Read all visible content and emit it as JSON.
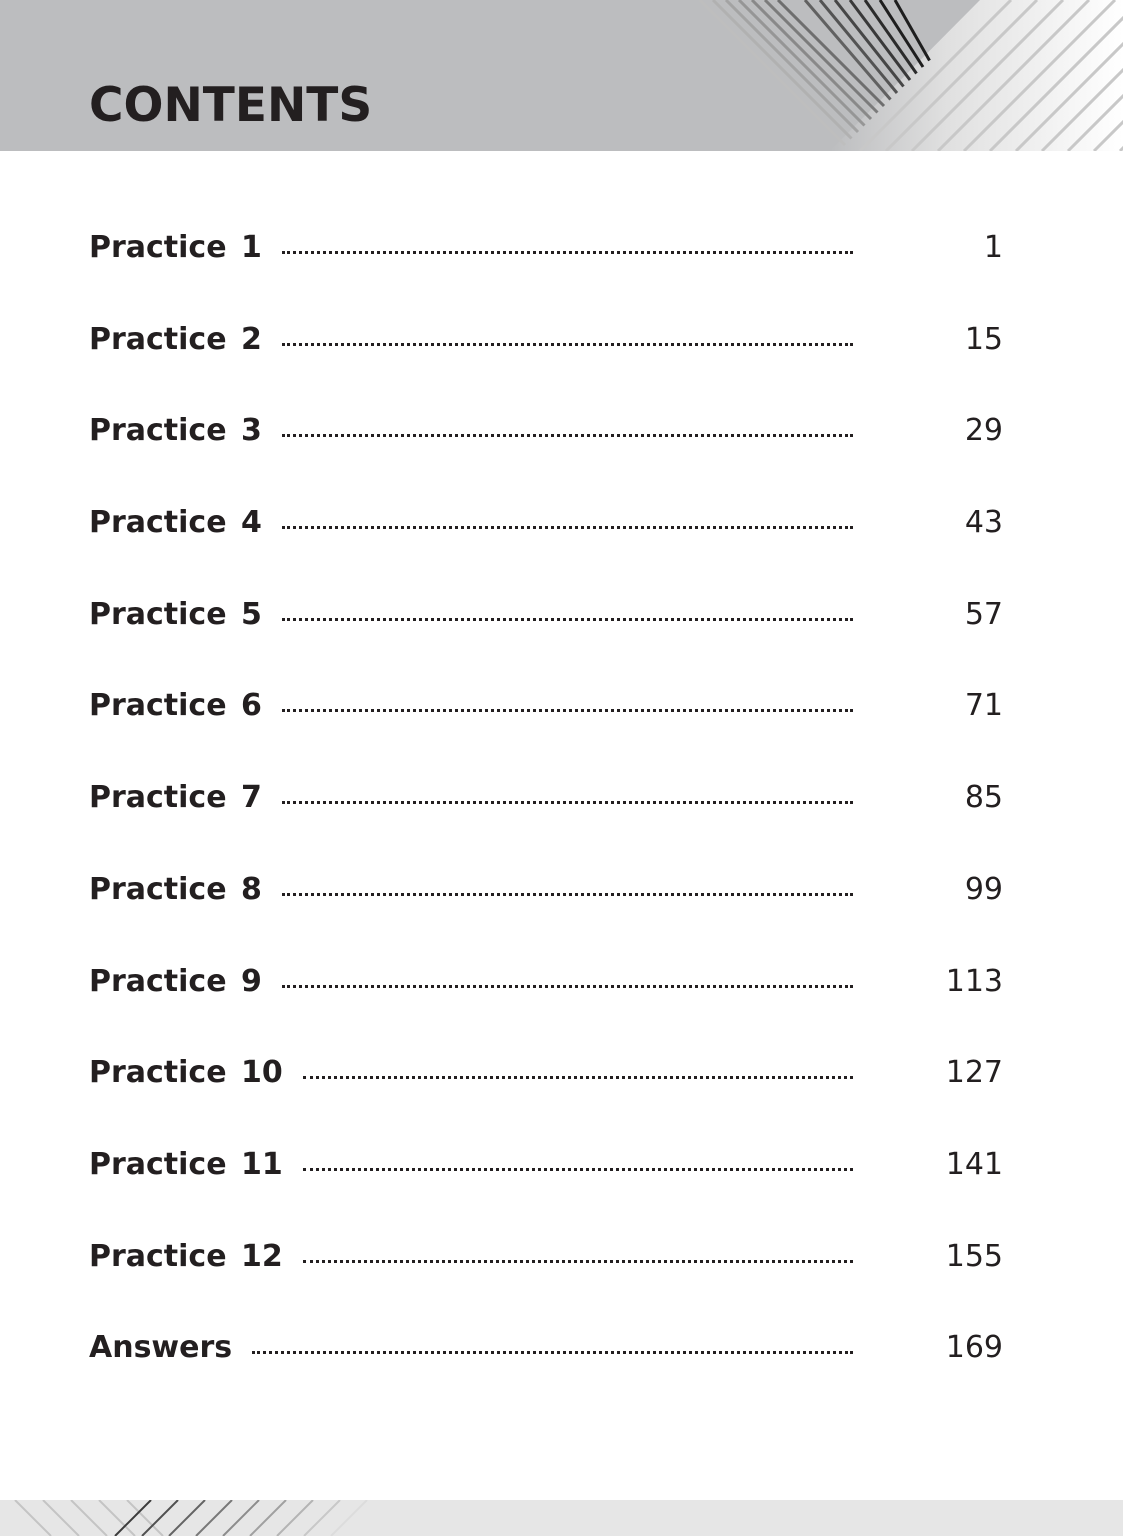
{
  "title": "CONTENTS",
  "entries": [
    {
      "label": "Practice 1",
      "page": "1"
    },
    {
      "label": "Practice 2",
      "page": "15"
    },
    {
      "label": "Practice 3",
      "page": "29"
    },
    {
      "label": "Practice 4",
      "page": "43"
    },
    {
      "label": "Practice 5",
      "page": "57"
    },
    {
      "label": "Practice 6",
      "page": "71"
    },
    {
      "label": "Practice 7",
      "page": "85"
    },
    {
      "label": "Practice 8",
      "page": "99"
    },
    {
      "label": "Practice 9",
      "page": "113"
    },
    {
      "label": "Practice 10",
      "page": "127"
    },
    {
      "label": "Practice 11",
      "page": "141"
    },
    {
      "label": "Practice 12",
      "page": "155"
    },
    {
      "label": "Answers",
      "page": "169"
    }
  ],
  "colors": {
    "header_band": "#bcbdbf",
    "footer_band": "#e6e6e6",
    "text": "#231f20"
  }
}
